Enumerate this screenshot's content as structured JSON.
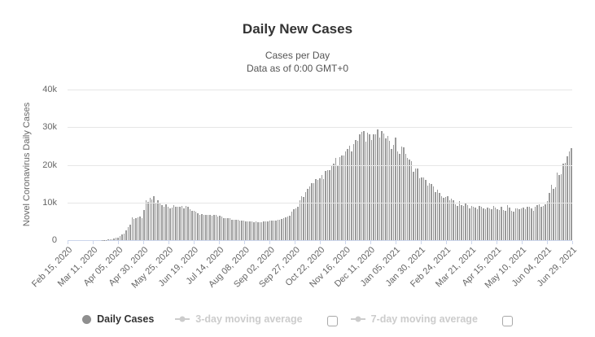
{
  "header": {
    "title": "Daily New Cases",
    "subtitle_line1": "Cases per Day",
    "subtitle_line2": "Data as of 0:00 GMT+0"
  },
  "colors": {
    "title": "#333333",
    "subtitle": "#555555",
    "label": "#666666",
    "grid": "#e6e6e6",
    "axis": "#ccd6eb",
    "bar": "#9a9a9a",
    "marker": "#8f8f8f",
    "disabled": "#cccccc"
  },
  "y_axis": {
    "title": "Novel Coronavirus Daily Cases",
    "ticks": [
      "40k",
      "30k",
      "20k",
      "10k",
      "0"
    ],
    "max": 40000
  },
  "x_axis": {
    "labels": [
      "Feb 15, 2020",
      "Mar 11, 2020",
      "Apr 05, 2020",
      "Apr 30, 2020",
      "May 25, 2020",
      "Jun 19, 2020",
      "Jul 14, 2020",
      "Aug 08, 2020",
      "Sep 02, 2020",
      "Sep 27, 2020",
      "Oct 22, 2020",
      "Nov 16, 2020",
      "Dec 11, 2020",
      "Jan 05, 2021",
      "Jan 30, 2021",
      "Feb 24, 2021",
      "Mar 21, 2021",
      "Apr 15, 2021",
      "May 10, 2021",
      "Jun 04, 2021",
      "Jun 29, 2021"
    ]
  },
  "legend": {
    "items": [
      {
        "label": "Daily Cases",
        "enabled": true,
        "marker": "circle",
        "checkbox": false
      },
      {
        "label": "3-day moving average",
        "enabled": false,
        "marker": "line-dot",
        "checkbox": true,
        "checked": false
      },
      {
        "label": "7-day moving average",
        "enabled": false,
        "marker": "line-dot",
        "checkbox": true,
        "checked": false
      }
    ]
  },
  "chart_data": {
    "type": "bar",
    "title": "Daily New Cases",
    "subtitle": "Cases per Day — Data as of 0:00 GMT+0",
    "series_name": "Daily Cases",
    "ylabel": "Novel Coronavirus Daily Cases",
    "ylim": [
      0,
      40000
    ],
    "grid": true,
    "legend_position": "bottom",
    "start_date": "Feb 15, 2020",
    "end_date": "Jul 03, 2021",
    "sample_interval_days": 2,
    "x_tick_labels": [
      "Feb 15, 2020",
      "Mar 11, 2020",
      "Apr 05, 2020",
      "Apr 30, 2020",
      "May 25, 2020",
      "Jun 19, 2020",
      "Jul 14, 2020",
      "Aug 08, 2020",
      "Sep 02, 2020",
      "Sep 27, 2020",
      "Oct 22, 2020",
      "Nov 16, 2020",
      "Dec 11, 2020",
      "Jan 05, 2021",
      "Jan 30, 2021",
      "Feb 24, 2021",
      "Mar 21, 2021",
      "Apr 15, 2021",
      "May 10, 2021",
      "Jun 04, 2021",
      "Jun 29, 2021"
    ],
    "values": [
      0,
      0,
      0,
      0,
      0,
      0,
      0,
      0,
      0,
      0,
      0,
      0,
      0,
      0,
      0,
      7,
      14,
      33,
      57,
      71,
      182,
      228,
      302,
      440,
      601,
      658,
      1154,
      1459,
      1667,
      2558,
      3388,
      4070,
      6060,
      5642,
      5849,
      5966,
      6198,
      5841,
      7933,
      10633,
      10102,
      11231,
      10817,
      11656,
      10028,
      10598,
      9709,
      9263,
      8849,
      9434,
      8946,
      8338,
      8572,
      9268,
      8863,
      8831,
      8855,
      8985,
      8404,
      8987,
      8835,
      8248,
      7790,
      7889,
      7600,
      7176,
      6800,
      6852,
      6693,
      6760,
      6632,
      6611,
      6562,
      6635,
      6615,
      6248,
      6428,
      6234,
      5940,
      5862,
      5811,
      5765,
      5395,
      5509,
      5462,
      5394,
      5204,
      5241,
      5189,
      4945,
      5057,
      5061,
      4892,
      4790,
      4870,
      4852,
      4696,
      4711,
      4993,
      4980,
      4952,
      5110,
      5195,
      5099,
      5218,
      5488,
      5509,
      5670,
      5905,
      6148,
      6215,
      6595,
      7523,
      8135,
      8481,
      8945,
      10499,
      11615,
      11493,
      12846,
      13592,
      14231,
      15150,
      15099,
      16319,
      15971,
      16521,
      17347,
      16202,
      18283,
      18665,
      18648,
      19768,
      20396,
      21798,
      19851,
      21983,
      22572,
      22410,
      23610,
      24318,
      25173,
      23675,
      25487,
      26683,
      26402,
      28145,
      28782,
      29039,
      26190,
      28585,
      28080,
      26689,
      28214,
      28209,
      29350,
      27250,
      29018,
      28284,
      27002,
      27747,
      26301,
      24150,
      25279,
      27327,
      23586,
      22934,
      24763,
      24715,
      22857,
      21734,
      21513,
      20921,
      18241,
      19138,
      19032,
      16474,
      16714,
      16688,
      16048,
      14494,
      15038,
      14861,
      14207,
      12828,
      13433,
      12604,
      11749,
      11198,
      11534,
      11571,
      10535,
      11024,
      10595,
      9445,
      9079,
      10398,
      9299,
      8998,
      9803,
      9299,
      8369,
      9128,
      8783,
      8589,
      8156,
      9169,
      8817,
      8328,
      8320,
      8704,
      8448,
      8217,
      8995,
      8632,
      8164,
      8045,
      8828,
      8053,
      7856,
      9284,
      8697,
      7770,
      7639,
      8329,
      8419,
      8217,
      8380,
      8554,
      8183,
      8764,
      8951,
      8420,
      7843,
      8947,
      9289,
      9500,
      8933,
      9145,
      9445,
      10407,
      12505,
      14723,
      13721,
      14057,
      17906,
      17378,
      17594,
      20393,
      20538,
      22330,
      23543,
      24439
    ]
  }
}
